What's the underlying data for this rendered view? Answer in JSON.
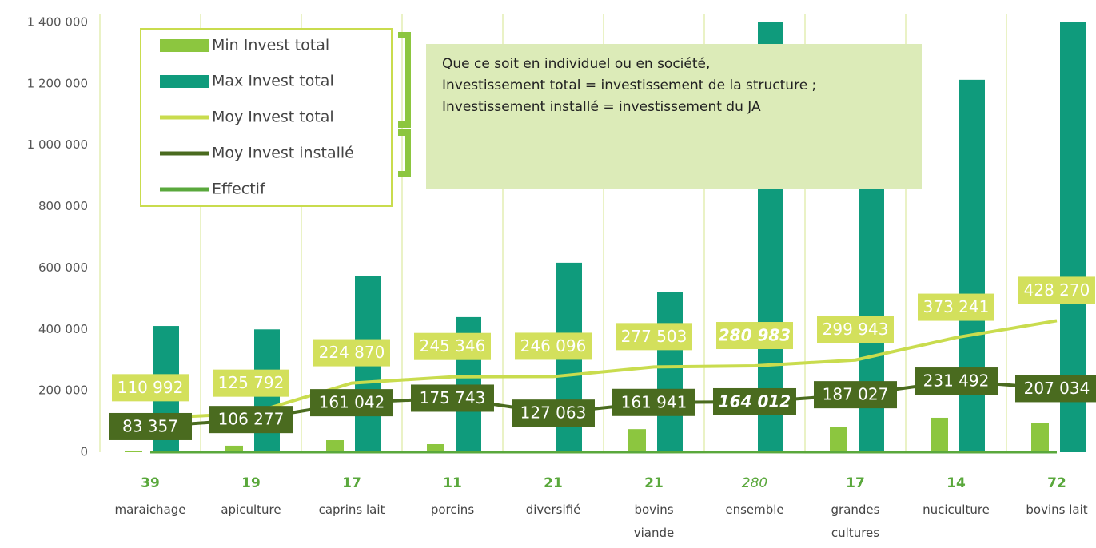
{
  "chart_data": {
    "type": "combo",
    "categories": [
      "maraichage",
      "apiculture",
      "caprins lait",
      "porcins",
      "diversifié",
      "bovins viande",
      "ensemble",
      "grandes cultures",
      "nuciculture",
      "bovins lait"
    ],
    "series": [
      {
        "name": "Min Invest total",
        "kind": "bar",
        "color": "#8cc63f",
        "values": [
          3000,
          21000,
          39000,
          26000,
          3000,
          75000,
          3000,
          81000,
          112000,
          96000
        ]
      },
      {
        "name": "Max Invest total",
        "kind": "bar",
        "color": "#0f9b7c",
        "values": [
          411000,
          400000,
          573000,
          440000,
          617000,
          523000,
          1400000,
          1000000,
          1213000,
          1400000
        ]
      },
      {
        "name": "Moy Invest total",
        "kind": "line",
        "color": "#c9dc4e",
        "label_color": "#d3e05c",
        "values": [
          110992,
          125792,
          224870,
          245346,
          246096,
          277503,
          280983,
          299943,
          373241,
          428270
        ],
        "value_labels": [
          "110 992",
          "125 792",
          "224 870",
          "245 346",
          "246 096",
          "277 503",
          "280 983",
          "299 943",
          "373 241",
          "428 270"
        ]
      },
      {
        "name": "Moy Invest installé",
        "kind": "line",
        "color": "#4a6b1f",
        "label_color": "#4a6b1f",
        "values": [
          83357,
          106277,
          161042,
          175743,
          127063,
          161941,
          164012,
          187027,
          231492,
          207034
        ],
        "value_labels": [
          "83 357",
          "106 277",
          "161 042",
          "175 743",
          "127 063",
          "161 941",
          "164 012",
          "187 027",
          "231 492",
          "207 034"
        ]
      },
      {
        "name": "Effectif",
        "kind": "line",
        "color": "#5aa83c",
        "values": [
          39,
          19,
          17,
          11,
          21,
          21,
          280,
          17,
          14,
          72
        ]
      }
    ],
    "ylim": [
      0,
      1400000
    ],
    "yticks": [
      0,
      {
        "value": 200000,
        "label": "200 000"
      },
      {
        "value": 400000,
        "label": "400 000"
      },
      {
        "value": 600000,
        "label": "600 000"
      },
      {
        "value": 800000,
        "label": "800 000"
      },
      {
        "value": 1000000,
        "label": "1 000 000"
      },
      {
        "value": 1200000,
        "label": "1 200 000"
      },
      {
        "value": 1400000,
        "label": "1 400 000"
      }
    ],
    "annotation": [
      "Que ce soit en individuel ou en société,",
      "Investissement total = investissement de la structure ;",
      "Investissement installé = investissement du JA"
    ]
  }
}
